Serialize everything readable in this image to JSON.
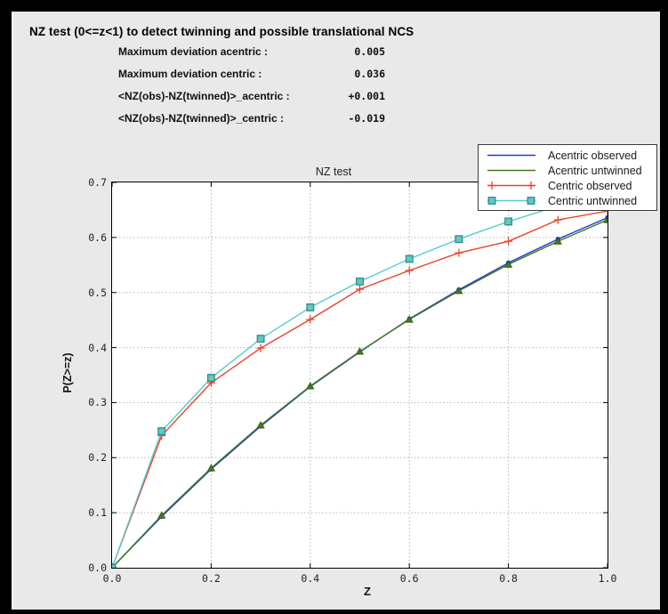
{
  "header": {
    "title": "NZ test (0<=z<1) to detect twinning and possible translational NCS",
    "stats": [
      {
        "label": "Maximum deviation acentric :",
        "value": "0.005"
      },
      {
        "label": "Maximum deviation centric :",
        "value": "0.036"
      },
      {
        "label": "<NZ(obs)-NZ(twinned)>_acentric :",
        "value": "+0.001"
      },
      {
        "label": "<NZ(obs)-NZ(twinned)>_centric :",
        "value": "-0.019"
      }
    ]
  },
  "chart_data": {
    "type": "line",
    "title": "NZ test",
    "xlabel": "Z",
    "ylabel": "P(Z>=z)",
    "xlim": [
      0.0,
      1.0
    ],
    "ylim": [
      0.0,
      0.7
    ],
    "grid": true,
    "legend_position": "upper right",
    "xticks": [
      0.0,
      0.2,
      0.4,
      0.6,
      0.8,
      1.0
    ],
    "xtick_labels": [
      "0.0",
      "0.2",
      "0.4",
      "0.6",
      "0.8",
      "1.0"
    ],
    "yticks": [
      0.0,
      0.1,
      0.2,
      0.3,
      0.4,
      0.5,
      0.6,
      0.7
    ],
    "ytick_labels": [
      "0.0",
      "0.1",
      "0.2",
      "0.3",
      "0.4",
      "0.5",
      "0.6",
      "0.7"
    ],
    "x": [
      0.0,
      0.1,
      0.2,
      0.3,
      0.4,
      0.5,
      0.6,
      0.7,
      0.8,
      0.9,
      1.0
    ],
    "series": [
      {
        "name": "Acentric observed",
        "color": "#2337cf",
        "marker": "circle",
        "values": [
          0.0,
          0.093,
          0.179,
          0.257,
          0.329,
          0.392,
          0.452,
          0.505,
          0.554,
          0.597,
          0.636
        ]
      },
      {
        "name": "Acentric untwinned",
        "color": "#42791f",
        "marker": "triangle",
        "values": [
          0.0,
          0.095,
          0.181,
          0.259,
          0.33,
          0.393,
          0.451,
          0.503,
          0.551,
          0.593,
          0.632
        ]
      },
      {
        "name": "Centric observed",
        "color": "#e8432c",
        "marker": "plus",
        "values": [
          0.0,
          0.24,
          0.336,
          0.399,
          0.451,
          0.506,
          0.54,
          0.572,
          0.593,
          0.632,
          0.648
        ]
      },
      {
        "name": "Centric untwinned",
        "color": "#55cdca",
        "marker": "square",
        "marker_fill": "#68c5bf",
        "marker_edge": "#2a8f8d",
        "values": [
          0.0,
          0.248,
          0.345,
          0.416,
          0.473,
          0.52,
          0.561,
          0.597,
          0.629,
          0.657,
          0.683
        ]
      }
    ],
    "colors": {
      "grid": "#b4b4b4",
      "plot_bg": "#ffffff",
      "window_bg": "#e9e9e9",
      "frame": "#000000"
    }
  }
}
